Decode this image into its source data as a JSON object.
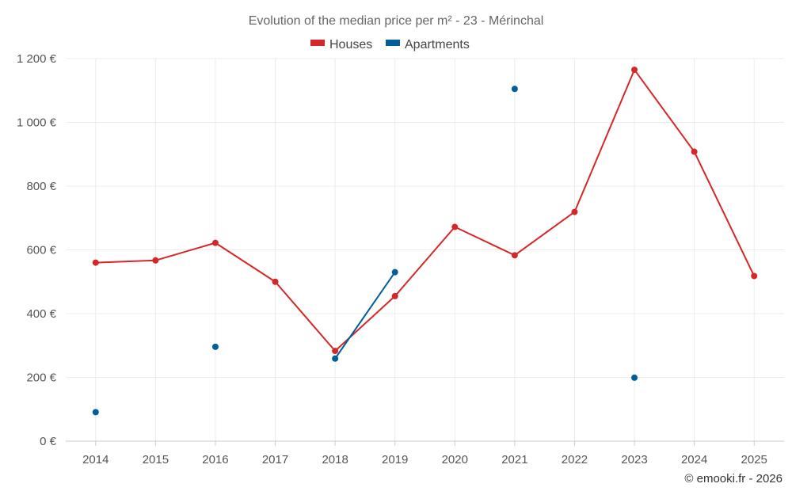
{
  "chart_data": {
    "type": "line",
    "title": "Evolution of the median price per m² - 23 - Mérinchal",
    "categories": [
      "2014",
      "2015",
      "2016",
      "2017",
      "2018",
      "2019",
      "2020",
      "2021",
      "2022",
      "2023",
      "2024",
      "2025"
    ],
    "ylim": [
      0,
      1200
    ],
    "yticks": [
      0,
      200,
      400,
      600,
      800,
      1000,
      1200
    ],
    "ytick_labels": [
      "0 €",
      "200 €",
      "400 €",
      "600 €",
      "800 €",
      "1 000 €",
      "1 200 €"
    ],
    "grid": true,
    "legend_position": "top-center",
    "series": [
      {
        "name": "Houses",
        "color": "#d62728",
        "values": [
          560,
          567,
          622,
          500,
          283,
          455,
          672,
          583,
          719,
          1165,
          908,
          518
        ]
      },
      {
        "name": "Apartments",
        "color": "#005f99",
        "values": [
          91,
          null,
          296,
          null,
          259,
          530,
          null,
          1105,
          null,
          199,
          null,
          null
        ]
      }
    ],
    "credit": "© emooki.fr - 2026"
  }
}
